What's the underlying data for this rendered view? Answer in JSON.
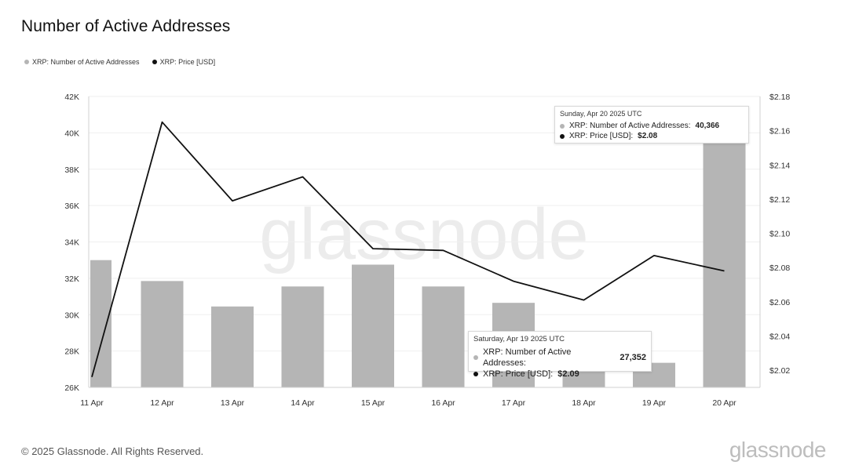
{
  "title": "Number of Active Addresses",
  "legend": [
    {
      "label": "XRP: Number of Active Addresses",
      "color": "#b5b5b5"
    },
    {
      "label": "XRP: Price [USD]",
      "color": "#111111"
    }
  ],
  "watermark": "glassnode",
  "tooltips": [
    {
      "date": "Sunday, Apr 20 2025 UTC",
      "addresses_label": "XRP: Number of Active Addresses:",
      "addresses_value": "40,366",
      "price_label": "XRP: Price [USD]:",
      "price_value": "$2.08"
    },
    {
      "date": "Saturday, Apr 19 2025 UTC",
      "addresses_label": "XRP: Number of Active Addresses:",
      "addresses_value": "27,352",
      "price_label": "XRP: Price [USD]:",
      "price_value": "$2.09"
    }
  ],
  "footer": "© 2025 Glassnode. All Rights Reserved.",
  "brand": "glassnode",
  "chart_data": {
    "type": "bar",
    "categories": [
      "11 Apr",
      "12 Apr",
      "13 Apr",
      "14 Apr",
      "15 Apr",
      "16 Apr",
      "17 Apr",
      "18 Apr",
      "19 Apr",
      "20 Apr"
    ],
    "series": [
      {
        "name": "XRP: Number of Active Addresses",
        "type": "bar",
        "axis": "left",
        "color": "#b5b5b5",
        "values": [
          33000,
          31850,
          30450,
          31550,
          32750,
          31550,
          30650,
          28400,
          27352,
          40366
        ]
      },
      {
        "name": "XRP: Price [USD]",
        "type": "line",
        "axis": "right",
        "color": "#111111",
        "values": [
          2.016,
          2.165,
          2.119,
          2.133,
          2.091,
          2.09,
          2.072,
          2.061,
          2.087,
          2.078
        ]
      }
    ],
    "y_left": {
      "min": 26000,
      "max": 42000,
      "ticks": [
        "26K",
        "28K",
        "30K",
        "32K",
        "34K",
        "36K",
        "38K",
        "40K",
        "42K"
      ]
    },
    "y_right": {
      "min": 2.01,
      "max": 2.18,
      "ticks": [
        "$2.02",
        "$2.04",
        "$2.06",
        "$2.08",
        "$2.10",
        "$2.12",
        "$2.14",
        "$2.16",
        "$2.18"
      ]
    },
    "grid": true,
    "legend_position": "top-left"
  }
}
